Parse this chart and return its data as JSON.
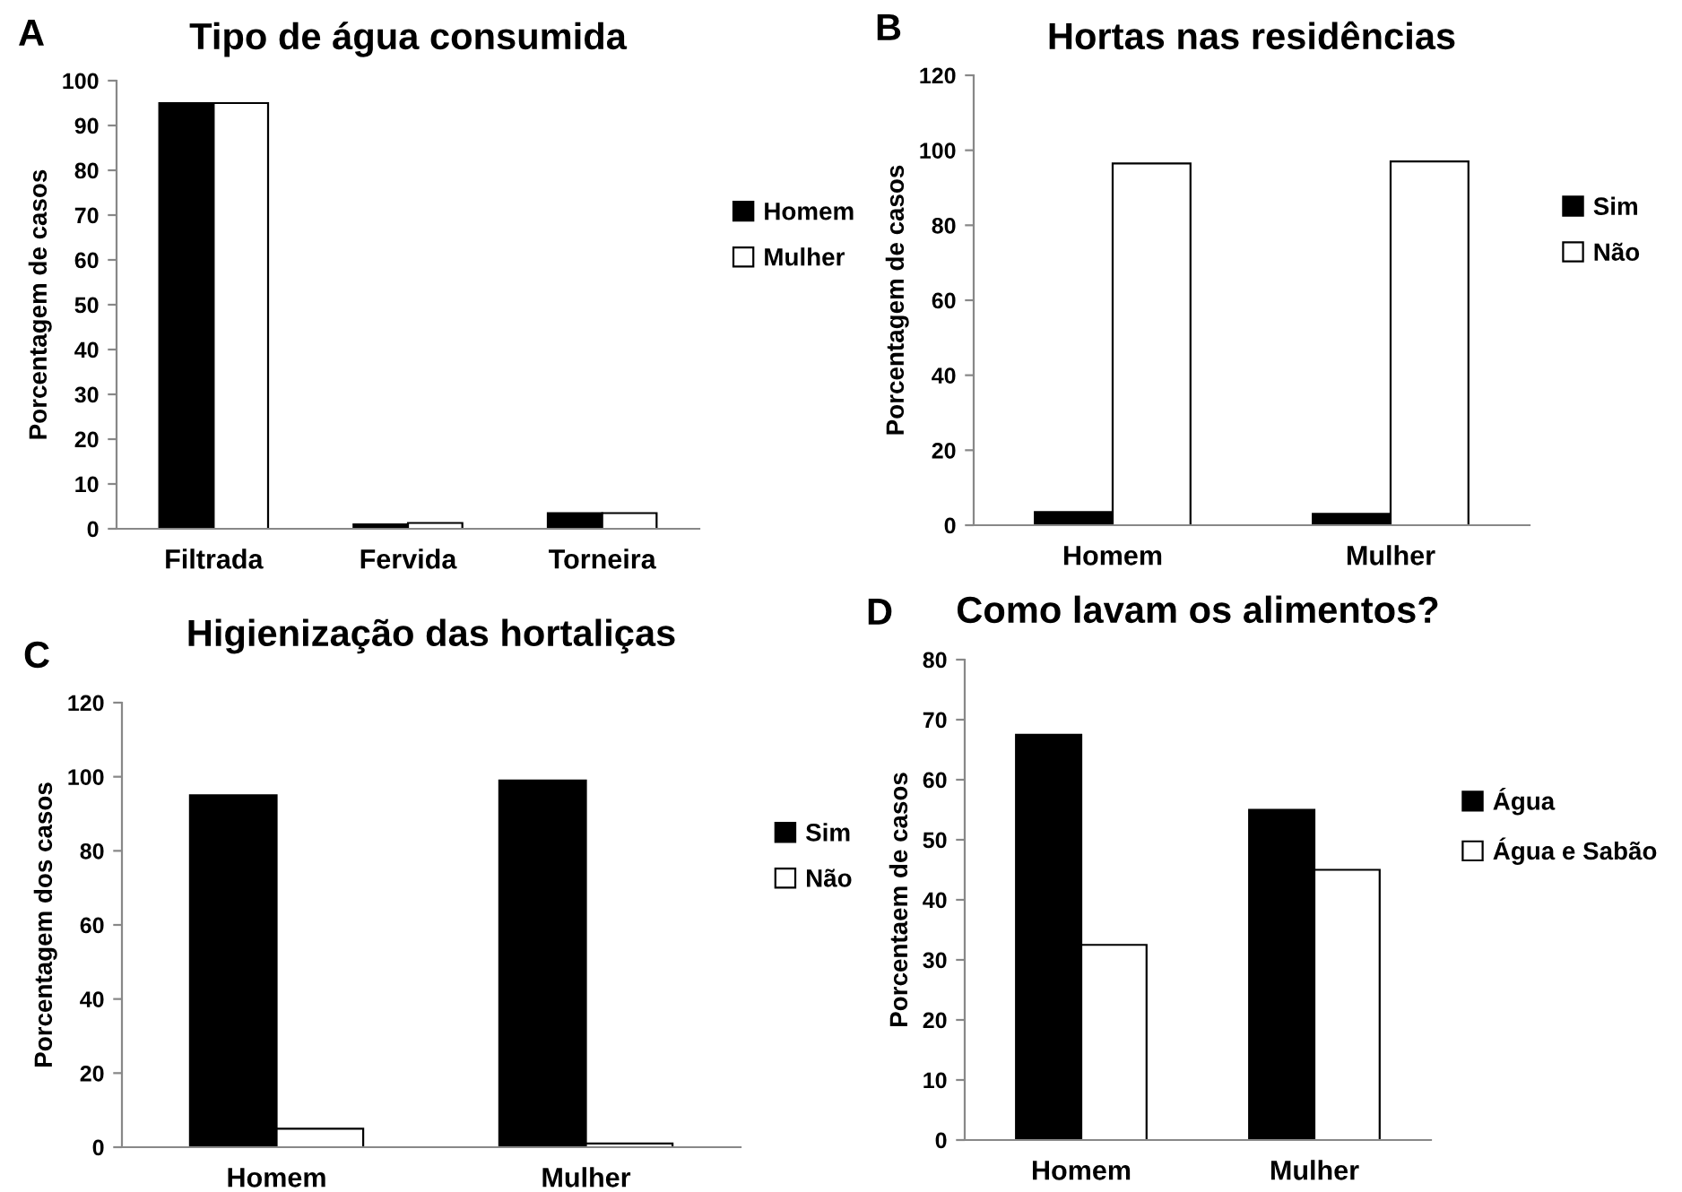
{
  "chart_data": [
    {
      "type": "bar",
      "title": "Tipo de água consumida",
      "ylabel": "Porcentagem de casos",
      "annotations": [
        "A"
      ],
      "categories": [
        "Filtrada",
        "Fervida",
        "Torneira"
      ],
      "series": [
        {
          "name": "Homem",
          "color": "#000000",
          "values": [
            95,
            1,
            3.5
          ]
        },
        {
          "name": "Mulher",
          "color": "#ffffff",
          "values": [
            95,
            1.3,
            3.5
          ]
        }
      ],
      "ylim": [
        0,
        100
      ],
      "yticks": [
        0,
        10,
        20,
        30,
        40,
        50,
        60,
        70,
        80,
        90,
        100
      ],
      "legend": "right"
    },
    {
      "type": "bar",
      "title": "Hortas nas residências",
      "ylabel": "Porcentagem de casos",
      "annotations": [
        "B"
      ],
      "categories": [
        "Homem",
        "Mulher"
      ],
      "series": [
        {
          "name": "Sim",
          "color": "#000000",
          "values": [
            3.5,
            3
          ]
        },
        {
          "name": "Não",
          "color": "#ffffff",
          "values": [
            96.5,
            97
          ]
        }
      ],
      "ylim": [
        0,
        120
      ],
      "yticks": [
        0,
        20,
        40,
        60,
        80,
        100,
        120
      ],
      "legend": "right"
    },
    {
      "type": "bar",
      "title": "Higienização das hortaliças",
      "ylabel": "Porcentagem dos casos",
      "annotations": [
        "C"
      ],
      "categories": [
        "Homem",
        "Mulher"
      ],
      "series": [
        {
          "name": "Sim",
          "color": "#000000",
          "values": [
            95,
            99
          ]
        },
        {
          "name": "Não",
          "color": "#ffffff",
          "values": [
            5,
            1
          ]
        }
      ],
      "ylim": [
        0,
        120
      ],
      "yticks": [
        0,
        20,
        40,
        60,
        80,
        100,
        120
      ],
      "legend": "right"
    },
    {
      "type": "bar",
      "title": "Como lavam os alimentos?",
      "ylabel": "Porcentaem de casos",
      "annotations": [
        "D"
      ],
      "categories": [
        "Homem",
        "Mulher"
      ],
      "series": [
        {
          "name": "Água",
          "color": "#000000",
          "values": [
            67.5,
            55
          ]
        },
        {
          "name": "Água e Sabão",
          "color": "#ffffff",
          "values": [
            32.5,
            45
          ]
        }
      ],
      "ylim": [
        0,
        80
      ],
      "yticks": [
        0,
        10,
        20,
        30,
        40,
        50,
        60,
        70,
        80
      ],
      "legend": "right"
    }
  ]
}
